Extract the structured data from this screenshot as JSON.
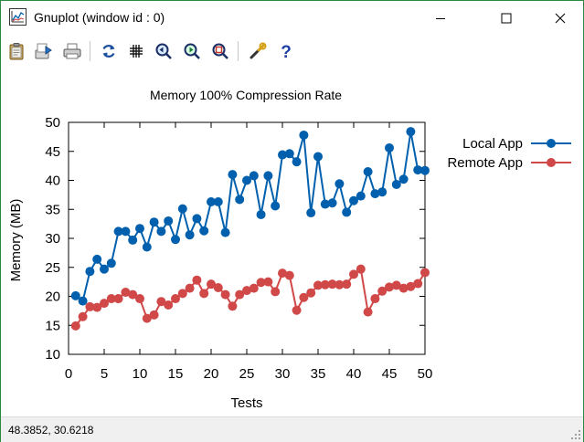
{
  "window": {
    "title": "Gnuplot (window id : 0)",
    "minimize_label": "—",
    "maximize_label": "☐",
    "close_label": "✕"
  },
  "toolbar": {
    "buttons": [
      "clipboard-icon",
      "export-icon",
      "print-icon",
      "replot-icon",
      "grid-icon",
      "zoom-previous-icon",
      "zoom-next-icon",
      "autoscale-icon",
      "options-icon",
      "help-icon"
    ]
  },
  "status": {
    "coordinates": "48.3852,  30.6218"
  },
  "colors": {
    "local": "#0060ad",
    "remote": "#d04848",
    "window_border": "#2b8a3e"
  },
  "chart_data": {
    "type": "line",
    "title": "Memory 100% Compression Rate",
    "xlabel": "Tests",
    "ylabel": "Memory (MB)",
    "xlim": [
      0,
      50
    ],
    "ylim": [
      10,
      50
    ],
    "xticks": [
      0,
      5,
      10,
      15,
      20,
      25,
      30,
      35,
      40,
      45,
      50
    ],
    "yticks": [
      10,
      15,
      20,
      25,
      30,
      35,
      40,
      45,
      50
    ],
    "legend_position": "outside top-right",
    "grid": false,
    "series": [
      {
        "name": "Local App",
        "color": "#0060ad",
        "x": [
          1,
          2,
          3,
          4,
          5,
          6,
          7,
          8,
          9,
          10,
          11,
          12,
          13,
          14,
          15,
          16,
          17,
          18,
          19,
          20,
          21,
          22,
          23,
          24,
          25,
          26,
          27,
          28,
          29,
          30,
          31,
          32,
          33,
          34,
          35,
          36,
          37,
          38,
          39,
          40,
          41,
          42,
          43,
          44,
          45,
          46,
          47,
          48,
          49,
          50
        ],
        "values": [
          20.1,
          19.2,
          24.3,
          26.4,
          24.7,
          25.7,
          31.2,
          31.2,
          29.7,
          31.7,
          28.5,
          32.8,
          31.2,
          33.0,
          29.8,
          35.1,
          30.6,
          33.4,
          31.3,
          36.3,
          36.3,
          31.0,
          41.0,
          36.7,
          40.0,
          40.8,
          34.1,
          40.8,
          35.6,
          44.4,
          44.6,
          43.2,
          47.8,
          34.4,
          44.1,
          35.9,
          36.1,
          39.4,
          34.5,
          36.5,
          37.3,
          41.5,
          37.7,
          38.0,
          45.6,
          39.3,
          40.2,
          48.4,
          41.8,
          41.7
        ]
      },
      {
        "name": "Remote App",
        "color": "#d04848",
        "x": [
          1,
          2,
          3,
          4,
          5,
          6,
          7,
          8,
          9,
          10,
          11,
          12,
          13,
          14,
          15,
          16,
          17,
          18,
          19,
          20,
          21,
          22,
          23,
          24,
          25,
          26,
          27,
          28,
          29,
          30,
          31,
          32,
          33,
          34,
          35,
          36,
          37,
          38,
          39,
          40,
          41,
          42,
          43,
          44,
          45,
          46,
          47,
          48,
          49,
          50
        ],
        "values": [
          14.9,
          16.5,
          18.2,
          18.1,
          18.8,
          19.6,
          19.6,
          20.7,
          20.3,
          19.6,
          16.2,
          16.8,
          19.1,
          18.5,
          19.6,
          20.5,
          21.4,
          22.8,
          20.5,
          22.1,
          21.5,
          20.3,
          18.3,
          20.3,
          21.0,
          21.4,
          22.4,
          22.5,
          20.8,
          24.0,
          23.6,
          17.6,
          19.8,
          20.6,
          21.9,
          22.0,
          22.1,
          22.0,
          22.1,
          23.8,
          24.7,
          17.3,
          19.6,
          20.9,
          21.6,
          21.9,
          21.4,
          21.7,
          22.2,
          24.1
        ]
      }
    ]
  }
}
